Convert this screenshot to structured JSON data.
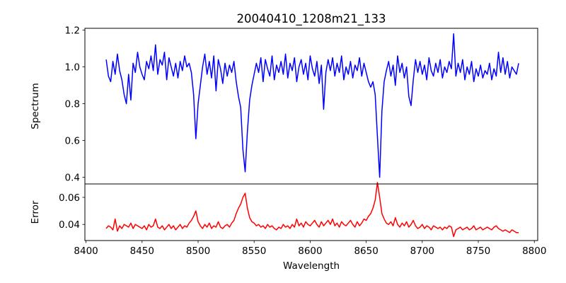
{
  "chart_data": [
    {
      "type": "line",
      "title": "20040410_1208m21_133",
      "xlabel": "",
      "ylabel": "Spectrum",
      "xlim": [
        8399,
        8803
      ],
      "ylim": [
        0.364,
        1.21
      ],
      "yticks": [
        0.4,
        0.6,
        0.8,
        1.0,
        1.2
      ],
      "ytick_labels": [
        "0.4",
        "0.6",
        "0.8",
        "1.0",
        "1.2"
      ],
      "grid": false,
      "series": [
        {
          "name": "Spectrum",
          "color": "#0000ff",
          "x_start": 8418,
          "x_step": 2,
          "values": [
            1.04,
            0.95,
            0.92,
            1.03,
            0.96,
            1.07,
            0.98,
            0.93,
            0.85,
            0.8,
            0.96,
            0.82,
            1.02,
            0.97,
            1.08,
            1.0,
            0.96,
            0.93,
            1.03,
            0.99,
            1.06,
            0.98,
            1.12,
            0.96,
            1.04,
            1.01,
            1.08,
            0.93,
            1.05,
            1.0,
            0.95,
            1.02,
            0.94,
            1.03,
            0.98,
            1.06,
            1.0,
            1.02,
            0.97,
            0.85,
            0.61,
            0.8,
            0.9,
            1.0,
            1.07,
            0.96,
            1.03,
            0.94,
            1.06,
            0.87,
            1.04,
            0.99,
            0.91,
            1.02,
            0.95,
            1.01,
            0.97,
            1.03,
            0.92,
            0.84,
            0.78,
            0.55,
            0.43,
            0.65,
            0.82,
            0.9,
            0.96,
            1.02,
            0.97,
            1.05,
            0.92,
            1.04,
            0.99,
            0.95,
            1.06,
            0.93,
            1.01,
            0.97,
            1.03,
            0.96,
            1.07,
            0.94,
            1.02,
            0.98,
            1.05,
            0.92,
            1.0,
            1.04,
            0.96,
            1.02,
            0.93,
            1.06,
            0.99,
            0.95,
            1.03,
            0.91,
            1.01,
            0.77,
            0.97,
            1.04,
            0.98,
            1.05,
            0.95,
            1.02,
            0.97,
            1.06,
            0.93,
            1.0,
            0.96,
            1.03,
            0.94,
            1.01,
            0.98,
            1.05,
            0.95,
            1.02,
            0.97,
            0.92,
            0.89,
            0.92,
            0.85,
            0.62,
            0.4,
            0.76,
            0.92,
            0.98,
            1.03,
            0.95,
            1.01,
            0.9,
            1.06,
            0.97,
            1.02,
            0.94,
            1.0,
            0.84,
            0.79,
            0.93,
            1.04,
            0.97,
            1.03,
            0.96,
            1.01,
            0.93,
            1.05,
            0.98,
            0.95,
            1.02,
            0.97,
            1.04,
            0.94,
            1.0,
            0.97,
            1.03,
            0.99,
            1.18,
            0.95,
            1.02,
            0.97,
            1.04,
            0.93,
            1.0,
            0.96,
            1.03,
            0.92,
            0.99,
            0.95,
            1.01,
            0.94,
            0.98,
            0.96,
            1.02,
            0.93,
            0.99,
            0.95,
            1.08,
            0.97,
            1.05,
            0.96,
            1.03,
            0.94,
            1.0,
            0.98,
            0.96,
            1.02
          ]
        }
      ]
    },
    {
      "type": "line",
      "xlabel": "Wavelength",
      "ylabel": "Error",
      "xlim": [
        8399,
        8803
      ],
      "ylim": [
        0.0281,
        0.0699
      ],
      "xticks": [
        8400,
        8450,
        8500,
        8550,
        8600,
        8650,
        8700,
        8750,
        8800
      ],
      "xtick_labels": [
        "8400",
        "8450",
        "8500",
        "8550",
        "8600",
        "8650",
        "8700",
        "8750",
        "8800"
      ],
      "yticks": [
        0.04,
        0.06
      ],
      "ytick_labels": [
        "0.04",
        "0.06"
      ],
      "grid": false,
      "series": [
        {
          "name": "Error",
          "color": "#ff0000",
          "x_start": 8418,
          "x_step": 2,
          "values": [
            0.037,
            0.039,
            0.038,
            0.036,
            0.044,
            0.035,
            0.039,
            0.037,
            0.04,
            0.039,
            0.038,
            0.041,
            0.037,
            0.04,
            0.039,
            0.038,
            0.037,
            0.039,
            0.036,
            0.04,
            0.038,
            0.039,
            0.044,
            0.038,
            0.037,
            0.039,
            0.036,
            0.038,
            0.04,
            0.037,
            0.039,
            0.036,
            0.038,
            0.04,
            0.037,
            0.039,
            0.038,
            0.041,
            0.043,
            0.046,
            0.05,
            0.042,
            0.039,
            0.037,
            0.04,
            0.038,
            0.041,
            0.037,
            0.039,
            0.038,
            0.042,
            0.038,
            0.037,
            0.039,
            0.04,
            0.038,
            0.041,
            0.043,
            0.048,
            0.052,
            0.055,
            0.06,
            0.063,
            0.052,
            0.045,
            0.042,
            0.041,
            0.039,
            0.04,
            0.038,
            0.039,
            0.037,
            0.04,
            0.038,
            0.039,
            0.037,
            0.036,
            0.038,
            0.037,
            0.04,
            0.038,
            0.039,
            0.037,
            0.04,
            0.038,
            0.044,
            0.039,
            0.041,
            0.038,
            0.042,
            0.04,
            0.039,
            0.041,
            0.043,
            0.04,
            0.038,
            0.042,
            0.039,
            0.041,
            0.043,
            0.04,
            0.044,
            0.039,
            0.041,
            0.038,
            0.042,
            0.04,
            0.039,
            0.041,
            0.043,
            0.04,
            0.038,
            0.042,
            0.039,
            0.041,
            0.044,
            0.043,
            0.046,
            0.048,
            0.052,
            0.058,
            0.071,
            0.06,
            0.048,
            0.044,
            0.041,
            0.04,
            0.042,
            0.039,
            0.045,
            0.04,
            0.038,
            0.041,
            0.039,
            0.042,
            0.038,
            0.04,
            0.043,
            0.039,
            0.037,
            0.038,
            0.04,
            0.037,
            0.039,
            0.038,
            0.036,
            0.039,
            0.038,
            0.037,
            0.038,
            0.036,
            0.038,
            0.037,
            0.039,
            0.038,
            0.031,
            0.036,
            0.037,
            0.038,
            0.036,
            0.037,
            0.038,
            0.036,
            0.037,
            0.039,
            0.036,
            0.037,
            0.038,
            0.036,
            0.037,
            0.038,
            0.037,
            0.036,
            0.038,
            0.039,
            0.037,
            0.036,
            0.035,
            0.036,
            0.035,
            0.034,
            0.036,
            0.035,
            0.034,
            0.034
          ]
        }
      ]
    }
  ]
}
